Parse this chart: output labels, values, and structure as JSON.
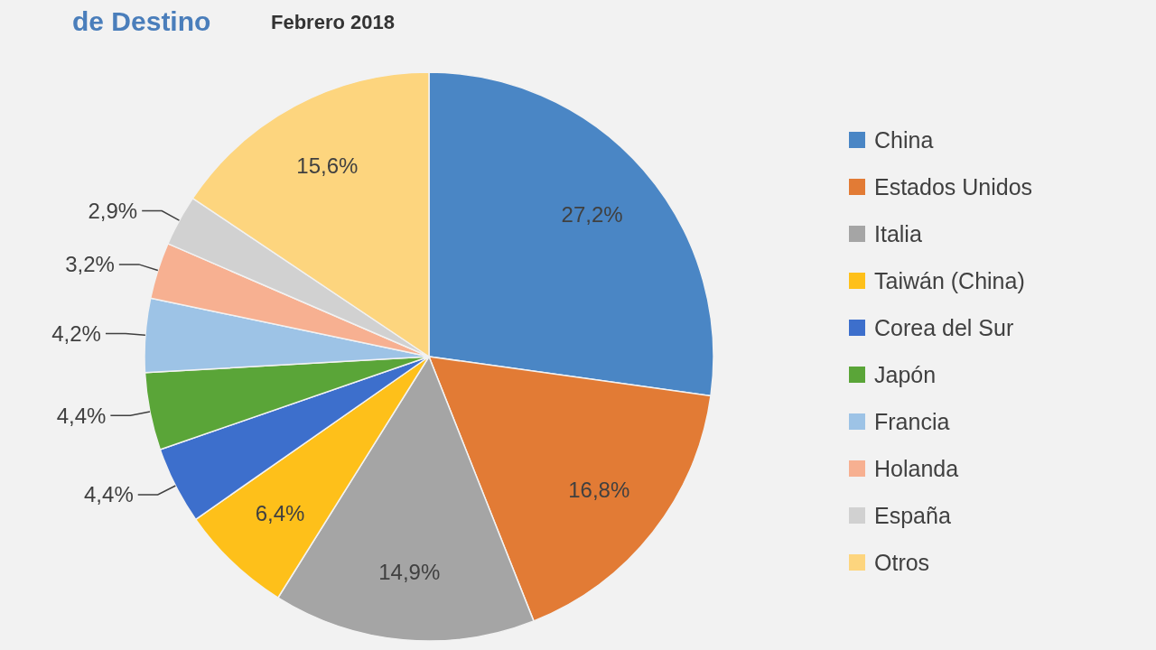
{
  "chart_data": {
    "type": "pie",
    "title": "de Destino",
    "subtitle": "Febrero 2018",
    "categories": [
      "China",
      "Estados Unidos",
      "Italia",
      "Taiwán (China)",
      "Corea del Sur",
      "Japón",
      "Francia",
      "Holanda",
      "España",
      "Otros"
    ],
    "values": [
      27.2,
      16.8,
      14.9,
      6.4,
      4.4,
      4.4,
      4.2,
      3.2,
      2.9,
      15.6
    ],
    "value_labels": [
      "27,2%",
      "16,8%",
      "14,9%",
      "6,4%",
      "4,4%",
      "4,4%",
      "4,2%",
      "3,2%",
      "2,9%",
      "15,6%"
    ],
    "colors": [
      "#4a86c5",
      "#e27b35",
      "#a5a5a5",
      "#fec01a",
      "#3d6fcc",
      "#5aa538",
      "#9dc3e6",
      "#f7b091",
      "#d1d1d1",
      "#fdd57e"
    ],
    "legend": "right"
  }
}
